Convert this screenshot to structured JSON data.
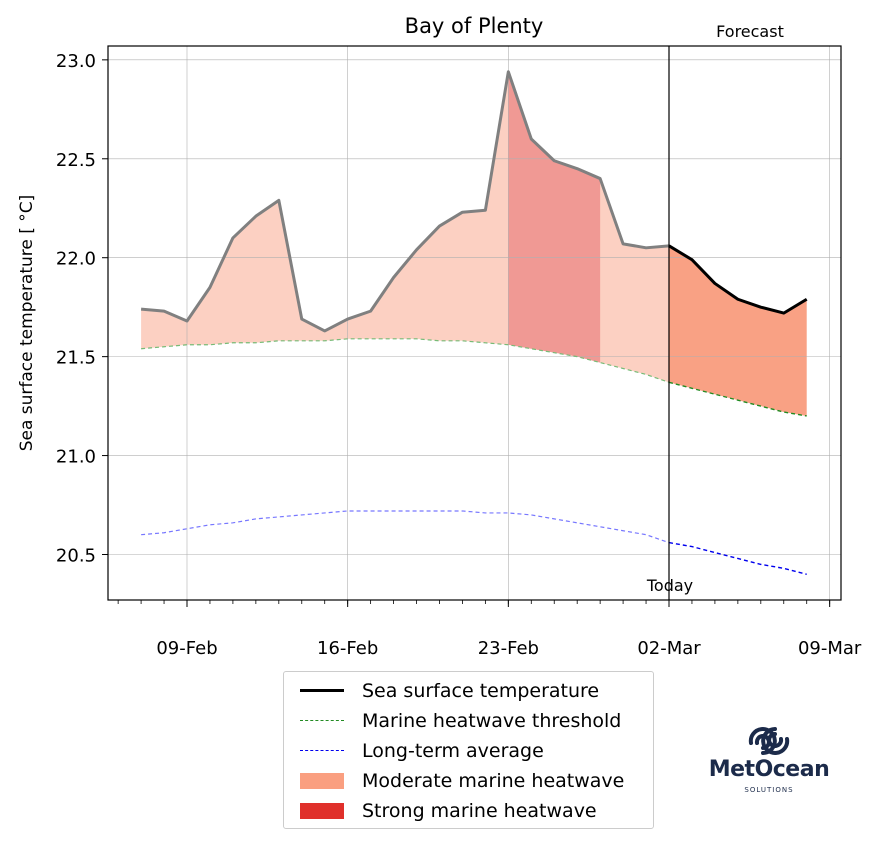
{
  "chart_data": {
    "type": "line",
    "title": "Bay of Plenty",
    "ylabel": "Sea surface temperature [$^\\circ$C]",
    "ylabel_display": "Sea surface temperature [ °C]",
    "xlabel": "",
    "ylim": [
      20.27,
      23.07
    ],
    "yticks": [
      "20.5",
      "21.0",
      "21.5",
      "22.0",
      "22.5",
      "23.0"
    ],
    "xticks": [
      "09-Feb",
      "16-Feb",
      "23-Feb",
      "02-Mar",
      "09-Mar"
    ],
    "annotations": {
      "forecast": "Forecast",
      "today": "Today"
    },
    "grid": true,
    "x": [
      "2021-02-07",
      "2021-02-08",
      "2021-02-09",
      "2021-02-10",
      "2021-02-11",
      "2021-02-12",
      "2021-02-13",
      "2021-02-14",
      "2021-02-15",
      "2021-02-16",
      "2021-02-17",
      "2021-02-18",
      "2021-02-19",
      "2021-02-20",
      "2021-02-21",
      "2021-02-22",
      "2021-02-23",
      "2021-02-24",
      "2021-02-25",
      "2021-02-26",
      "2021-02-27",
      "2021-02-28",
      "2021-03-01",
      "2021-03-02",
      "2021-03-03",
      "2021-03-04",
      "2021-03-05",
      "2021-03-06",
      "2021-03-07",
      "2021-03-08"
    ],
    "series": [
      {
        "name": "Sea surface temperature",
        "values": [
          21.74,
          21.73,
          21.68,
          21.85,
          22.1,
          22.21,
          22.29,
          21.69,
          21.63,
          21.69,
          21.73,
          21.9,
          22.04,
          22.16,
          22.23,
          22.24,
          22.94,
          22.6,
          22.49,
          22.45,
          22.4,
          22.07,
          22.05,
          22.06,
          21.99,
          21.87,
          21.79,
          21.75,
          21.72,
          21.79
        ]
      },
      {
        "name": "Marine heatwave threshold",
        "values": [
          21.54,
          21.55,
          21.56,
          21.56,
          21.57,
          21.57,
          21.58,
          21.58,
          21.58,
          21.59,
          21.59,
          21.59,
          21.59,
          21.58,
          21.58,
          21.57,
          21.56,
          21.54,
          21.52,
          21.5,
          21.47,
          21.44,
          21.41,
          21.37,
          21.34,
          21.31,
          21.28,
          21.25,
          21.22,
          21.2
        ]
      },
      {
        "name": "Long-term average",
        "values": [
          20.6,
          20.61,
          20.63,
          20.65,
          20.66,
          20.68,
          20.69,
          20.7,
          20.71,
          20.72,
          20.72,
          20.72,
          20.72,
          20.72,
          20.72,
          20.71,
          20.71,
          20.7,
          20.68,
          20.66,
          20.64,
          20.62,
          20.6,
          20.56,
          20.54,
          20.51,
          20.48,
          20.45,
          20.43,
          20.4
        ]
      }
    ],
    "forecast_start": "2021-03-02",
    "strong_period": [
      "2021-02-23",
      "2021-02-27"
    ],
    "legend": {
      "placement": "bottom-center",
      "entries": [
        "Sea surface temperature",
        "Marine heatwave threshold",
        "Long-term average",
        "Moderate marine heatwave",
        "Strong marine heatwave"
      ]
    },
    "colors": {
      "sst_observed": "#808080",
      "sst_forecast": "#000000",
      "threshold": "#228b22",
      "average": "#0000ee",
      "moderate_fill": "#fcd0c2",
      "moderate_fill_forecast": "#f9a184",
      "strong_fill": "#f09994",
      "legend_moderate": "#fa9f80",
      "legend_strong": "#e0302b",
      "grid": "#b0b0b0"
    }
  },
  "logo": {
    "name": "MetOcean",
    "subtitle": "SOLUTIONS"
  }
}
